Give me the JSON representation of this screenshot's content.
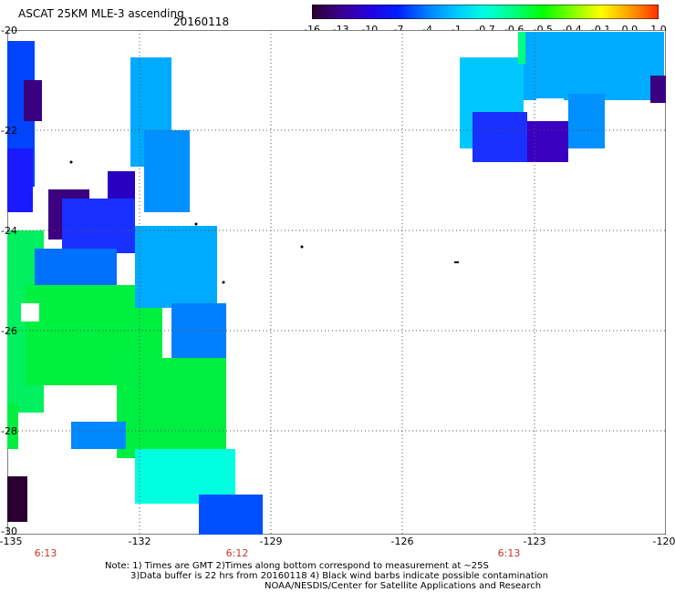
{
  "header": {
    "title": "ASCAT 25KM MLE-3 ascending",
    "date": "20160118"
  },
  "colorbar": {
    "labels": [
      "-16",
      "-13",
      "-10",
      "-7",
      "-4",
      "-1",
      "-0.7",
      "-0.6",
      "-0.5",
      "-0.4",
      "-0.1",
      "0.0",
      "1.0"
    ],
    "colors": [
      "#2a0030",
      "#3b0090",
      "#2400e0",
      "#0020ff",
      "#0080ff",
      "#00c8ff",
      "#00ffe0",
      "#00ff80",
      "#00ff00",
      "#80ff00",
      "#ffff00",
      "#ffa000",
      "#ff3000"
    ]
  },
  "axes": {
    "lat_labels": [
      "-20",
      "-22",
      "-24",
      "-26",
      "-28",
      "-30"
    ],
    "lon_labels": [
      "-135",
      "-132",
      "-129",
      "-126",
      "-123",
      "-120"
    ],
    "time_labels": [
      "6:13",
      "6:12",
      "6:13"
    ]
  },
  "notes": {
    "line1": "Note: 1) Times are GMT 2)Times along bottom correspond to measurement at ~25S",
    "line2": "3)Data buffer is 22 hrs from 20160118 4) Black wind barbs indicate possible contamination",
    "line3": "NOAA/NESDIS/Center for Satellite Applications and Research"
  }
}
